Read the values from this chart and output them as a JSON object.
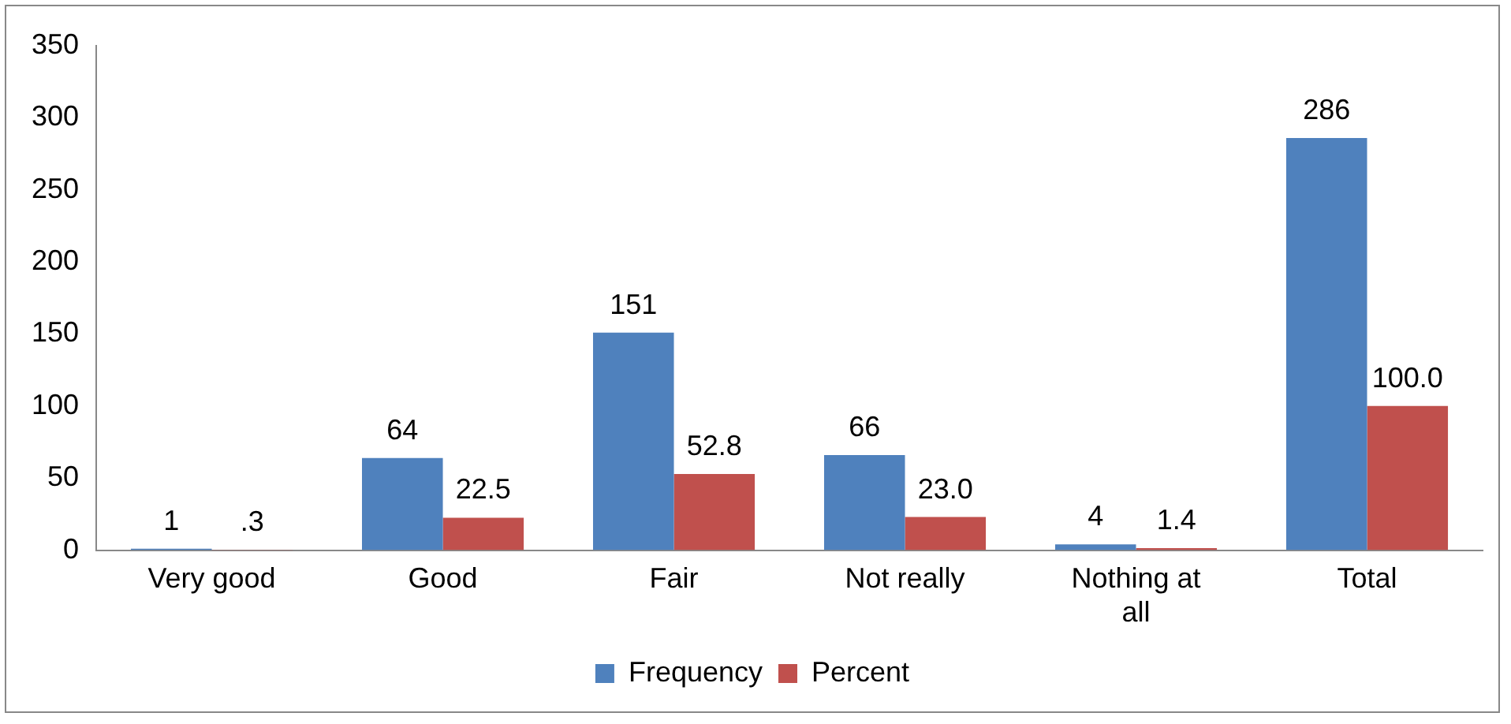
{
  "chart_data": {
    "type": "bar",
    "categories": [
      "Very good",
      "Good",
      "Fair",
      "Not really",
      "Nothing at all",
      "Total"
    ],
    "series": [
      {
        "name": "Frequency",
        "color": "#4f81bd",
        "values": [
          1,
          64,
          151,
          66,
          4,
          286
        ],
        "value_labels": [
          "1",
          "64",
          "151",
          "66",
          "4",
          "286"
        ]
      },
      {
        "name": "Percent",
        "color": "#c0504d",
        "values": [
          0.3,
          22.5,
          52.8,
          23.0,
          1.4,
          100.0
        ],
        "value_labels": [
          ".3",
          "22.5",
          "52.8",
          "23.0",
          "1.4",
          "100.0"
        ]
      }
    ],
    "ylim": [
      0,
      350
    ],
    "yticks": [
      0,
      50,
      100,
      150,
      200,
      250,
      300,
      350
    ],
    "grid": false,
    "legend": "bottom"
  }
}
